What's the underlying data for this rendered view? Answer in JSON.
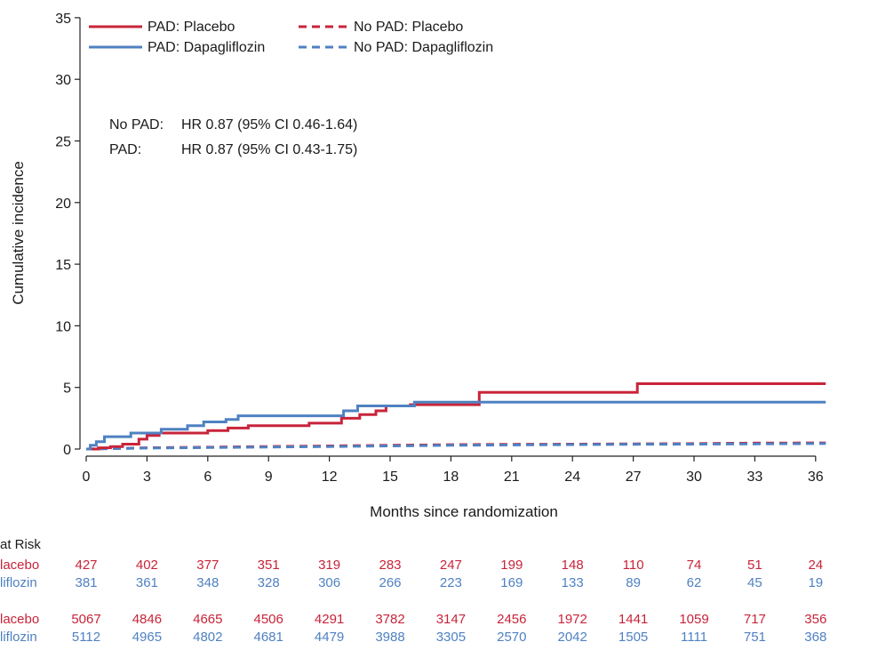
{
  "chart_data": {
    "type": "line",
    "title": "",
    "xlabel": "Months since randomization",
    "ylabel": "Cumulative incidence",
    "xlim": [
      0,
      36
    ],
    "ylim": [
      0,
      35
    ],
    "xticks": [
      0,
      3,
      6,
      9,
      12,
      15,
      18,
      21,
      24,
      27,
      30,
      33,
      36
    ],
    "yticks": [
      0,
      5,
      10,
      15,
      20,
      25,
      30,
      35
    ],
    "grid": false,
    "legend_position": "top-left",
    "colors": {
      "placebo": "#c8243a",
      "dapagliflozin": "#4f81c2"
    },
    "series": [
      {
        "name": "PAD: Placebo",
        "color": "#c8243a",
        "dash": false,
        "points": [
          [
            0,
            0
          ],
          [
            0.6,
            0
          ],
          [
            0.6,
            0.1
          ],
          [
            1.2,
            0.1
          ],
          [
            1.2,
            0.2
          ],
          [
            1.8,
            0.2
          ],
          [
            1.8,
            0.4
          ],
          [
            2.6,
            0.4
          ],
          [
            2.6,
            0.8
          ],
          [
            3.0,
            0.8
          ],
          [
            3.0,
            1.1
          ],
          [
            3.6,
            1.1
          ],
          [
            3.6,
            1.3
          ],
          [
            6.0,
            1.3
          ],
          [
            6.0,
            1.5
          ],
          [
            7.0,
            1.5
          ],
          [
            7.0,
            1.7
          ],
          [
            8.0,
            1.7
          ],
          [
            8.0,
            1.9
          ],
          [
            11.0,
            1.9
          ],
          [
            11.0,
            2.1
          ],
          [
            12.6,
            2.1
          ],
          [
            12.6,
            2.5
          ],
          [
            13.5,
            2.5
          ],
          [
            13.5,
            2.8
          ],
          [
            14.3,
            2.8
          ],
          [
            14.3,
            3.1
          ],
          [
            14.8,
            3.1
          ],
          [
            14.8,
            3.5
          ],
          [
            16.0,
            3.5
          ],
          [
            16.0,
            3.6
          ],
          [
            19.4,
            3.6
          ],
          [
            19.4,
            4.6
          ],
          [
            27.2,
            4.6
          ],
          [
            27.2,
            5.3
          ],
          [
            36.5,
            5.3
          ]
        ]
      },
      {
        "name": "PAD: Dapagliflozin",
        "color": "#4f81c2",
        "dash": false,
        "points": [
          [
            0,
            0
          ],
          [
            0.2,
            0
          ],
          [
            0.2,
            0.3
          ],
          [
            0.5,
            0.3
          ],
          [
            0.5,
            0.6
          ],
          [
            0.9,
            0.6
          ],
          [
            0.9,
            1.0
          ],
          [
            2.2,
            1.0
          ],
          [
            2.2,
            1.3
          ],
          [
            3.7,
            1.3
          ],
          [
            3.7,
            1.6
          ],
          [
            5.0,
            1.6
          ],
          [
            5.0,
            1.9
          ],
          [
            5.8,
            1.9
          ],
          [
            5.8,
            2.2
          ],
          [
            6.9,
            2.2
          ],
          [
            6.9,
            2.4
          ],
          [
            7.5,
            2.4
          ],
          [
            7.5,
            2.7
          ],
          [
            12.7,
            2.7
          ],
          [
            12.7,
            3.1
          ],
          [
            13.4,
            3.1
          ],
          [
            13.4,
            3.5
          ],
          [
            16.2,
            3.5
          ],
          [
            16.2,
            3.8
          ],
          [
            36.5,
            3.8
          ]
        ]
      },
      {
        "name": "No PAD: Placebo",
        "color": "#c8243a",
        "dash": true,
        "points": [
          [
            0,
            0
          ],
          [
            3,
            0.1
          ],
          [
            6,
            0.15
          ],
          [
            9,
            0.2
          ],
          [
            12,
            0.25
          ],
          [
            15,
            0.3
          ],
          [
            18,
            0.35
          ],
          [
            21,
            0.38
          ],
          [
            24,
            0.4
          ],
          [
            27,
            0.42
          ],
          [
            30,
            0.44
          ],
          [
            33,
            0.48
          ],
          [
            36.5,
            0.5
          ]
        ]
      },
      {
        "name": "No PAD: Dapagliflozin",
        "color": "#4f81c2",
        "dash": true,
        "points": [
          [
            0,
            0
          ],
          [
            3,
            0.08
          ],
          [
            6,
            0.12
          ],
          [
            9,
            0.16
          ],
          [
            12,
            0.2
          ],
          [
            15,
            0.25
          ],
          [
            18,
            0.3
          ],
          [
            21,
            0.33
          ],
          [
            24,
            0.36
          ],
          [
            27,
            0.38
          ],
          [
            30,
            0.4
          ],
          [
            33,
            0.42
          ],
          [
            36.5,
            0.45
          ]
        ]
      }
    ],
    "annotations": [
      {
        "label": "No PAD:",
        "text": "HR 0.87 (95% CI 0.46-1.64)"
      },
      {
        "label": "PAD:",
        "text": "HR 0.87 (95% CI 0.43-1.75)"
      }
    ],
    "risk_table": {
      "title": "at Risk",
      "rows": [
        {
          "label": "lacebo",
          "color": "#c8243a",
          "values": [
            427,
            402,
            377,
            351,
            319,
            283,
            247,
            199,
            148,
            110,
            74,
            51,
            24
          ]
        },
        {
          "label": "liflozin",
          "color": "#4f81c2",
          "values": [
            381,
            361,
            348,
            328,
            306,
            266,
            223,
            169,
            133,
            89,
            62,
            45,
            19
          ]
        },
        {
          "label": "lacebo",
          "color": "#c8243a",
          "values": [
            5067,
            4846,
            4665,
            4506,
            4291,
            3782,
            3147,
            2456,
            1972,
            1441,
            1059,
            717,
            356
          ]
        },
        {
          "label": "liflozin",
          "color": "#4f81c2",
          "values": [
            5112,
            4965,
            4802,
            4681,
            4479,
            3988,
            3305,
            2570,
            2042,
            1505,
            1111,
            751,
            368
          ]
        }
      ]
    }
  }
}
